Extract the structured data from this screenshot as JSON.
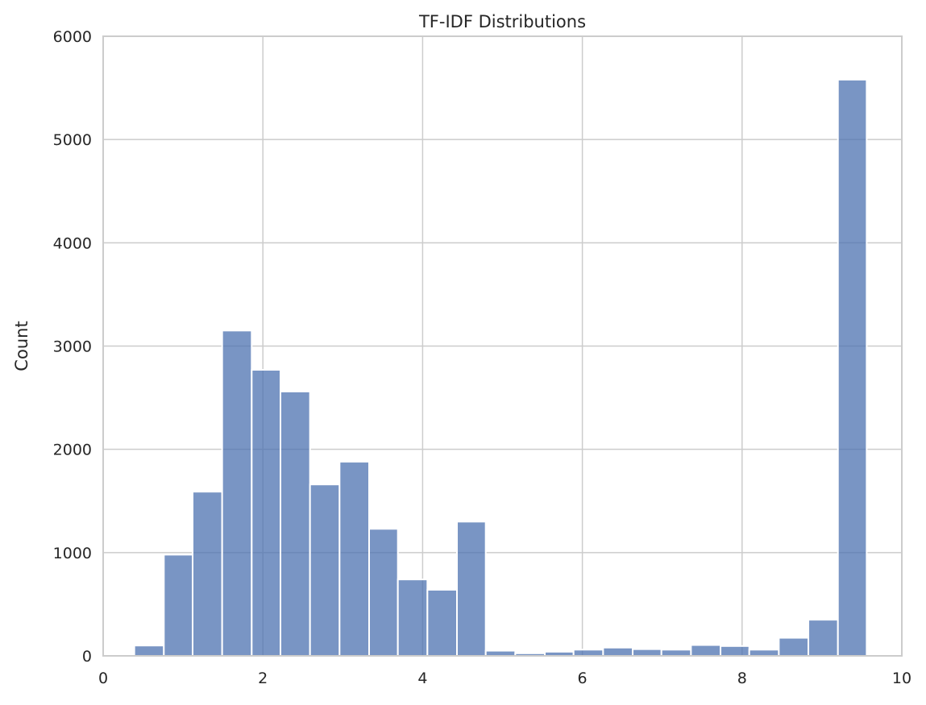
{
  "chart_data": {
    "type": "bar",
    "title": "TF-IDF Distributions",
    "xlabel": "",
    "ylabel": "Count",
    "xlim": [
      0,
      10
    ],
    "ylim": [
      0,
      6000
    ],
    "xticks": [
      "0",
      "2",
      "4",
      "6",
      "8",
      "10"
    ],
    "yticks": [
      "0",
      "1000",
      "2000",
      "3000",
      "4000",
      "5000",
      "6000"
    ],
    "grid": true,
    "bar_color": "#4c72b0",
    "bins": [
      {
        "x0": 0.39,
        "x1": 0.76,
        "count": 100
      },
      {
        "x0": 0.76,
        "x1": 1.12,
        "count": 980
      },
      {
        "x0": 1.12,
        "x1": 1.49,
        "count": 1590
      },
      {
        "x0": 1.49,
        "x1": 1.86,
        "count": 3150
      },
      {
        "x0": 1.86,
        "x1": 2.22,
        "count": 2770
      },
      {
        "x0": 2.22,
        "x1": 2.59,
        "count": 2560
      },
      {
        "x0": 2.59,
        "x1": 2.96,
        "count": 1660
      },
      {
        "x0": 2.96,
        "x1": 3.33,
        "count": 1880
      },
      {
        "x0": 3.33,
        "x1": 3.69,
        "count": 1230
      },
      {
        "x0": 3.69,
        "x1": 4.06,
        "count": 740
      },
      {
        "x0": 4.06,
        "x1": 4.43,
        "count": 640
      },
      {
        "x0": 4.43,
        "x1": 4.79,
        "count": 1300
      },
      {
        "x0": 4.79,
        "x1": 5.16,
        "count": 50
      },
      {
        "x0": 5.16,
        "x1": 5.53,
        "count": 25
      },
      {
        "x0": 5.53,
        "x1": 5.89,
        "count": 40
      },
      {
        "x0": 5.89,
        "x1": 6.26,
        "count": 60
      },
      {
        "x0": 6.26,
        "x1": 6.63,
        "count": 80
      },
      {
        "x0": 6.63,
        "x1": 6.99,
        "count": 65
      },
      {
        "x0": 6.99,
        "x1": 7.36,
        "count": 60
      },
      {
        "x0": 7.36,
        "x1": 7.73,
        "count": 105
      },
      {
        "x0": 7.73,
        "x1": 8.09,
        "count": 95
      },
      {
        "x0": 8.09,
        "x1": 8.46,
        "count": 60
      },
      {
        "x0": 8.46,
        "x1": 8.83,
        "count": 175
      },
      {
        "x0": 8.83,
        "x1": 9.2,
        "count": 350
      },
      {
        "x0": 9.2,
        "x1": 9.56,
        "count": 5580
      }
    ]
  }
}
